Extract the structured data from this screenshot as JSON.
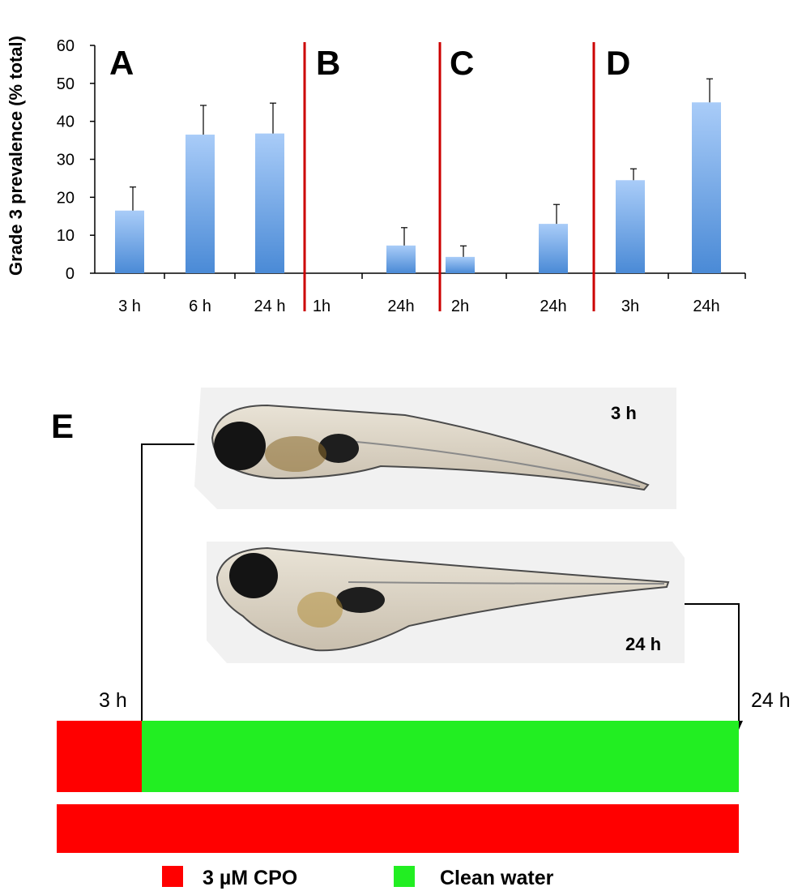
{
  "chart_data": {
    "type": "bar",
    "ylabel": "Grade 3 prevalence (% total)",
    "ylim": [
      0,
      60
    ],
    "yticks": [
      0,
      10,
      20,
      30,
      40,
      50,
      60
    ],
    "panels": [
      {
        "label": "A",
        "categories": [
          "3 h",
          "6 h",
          "24 h"
        ],
        "values": [
          16.5,
          36.5,
          36.8
        ],
        "errors": [
          6.2,
          7.7,
          8.0
        ]
      },
      {
        "label": "B",
        "categories": [
          "1h",
          "24h"
        ],
        "values": [
          0,
          7.3
        ],
        "errors": [
          0,
          4.7
        ]
      },
      {
        "label": "C",
        "categories": [
          "2h",
          "24h"
        ],
        "values": [
          4.3,
          13.0
        ],
        "errors": [
          2.9,
          5.1
        ]
      },
      {
        "label": "D",
        "categories": [
          "3h",
          "24h"
        ],
        "values": [
          24.5,
          45.0
        ],
        "errors": [
          3.0,
          6.2
        ]
      }
    ]
  },
  "panel_e": {
    "label": "E",
    "photo_top_label": "3 h",
    "photo_bottom_label": "24 h",
    "timeline_start_label": "3 h",
    "timeline_end_label": "24 h",
    "colors": {
      "cpo": "#ff0000",
      "water": "#22ee22",
      "bar_top": "#a9ccf8",
      "bar_bottom": "#4a8ad6",
      "divider": "#cc0000"
    },
    "legend": {
      "cpo_label": "3 µM CPO",
      "water_label": "Clean water"
    }
  }
}
